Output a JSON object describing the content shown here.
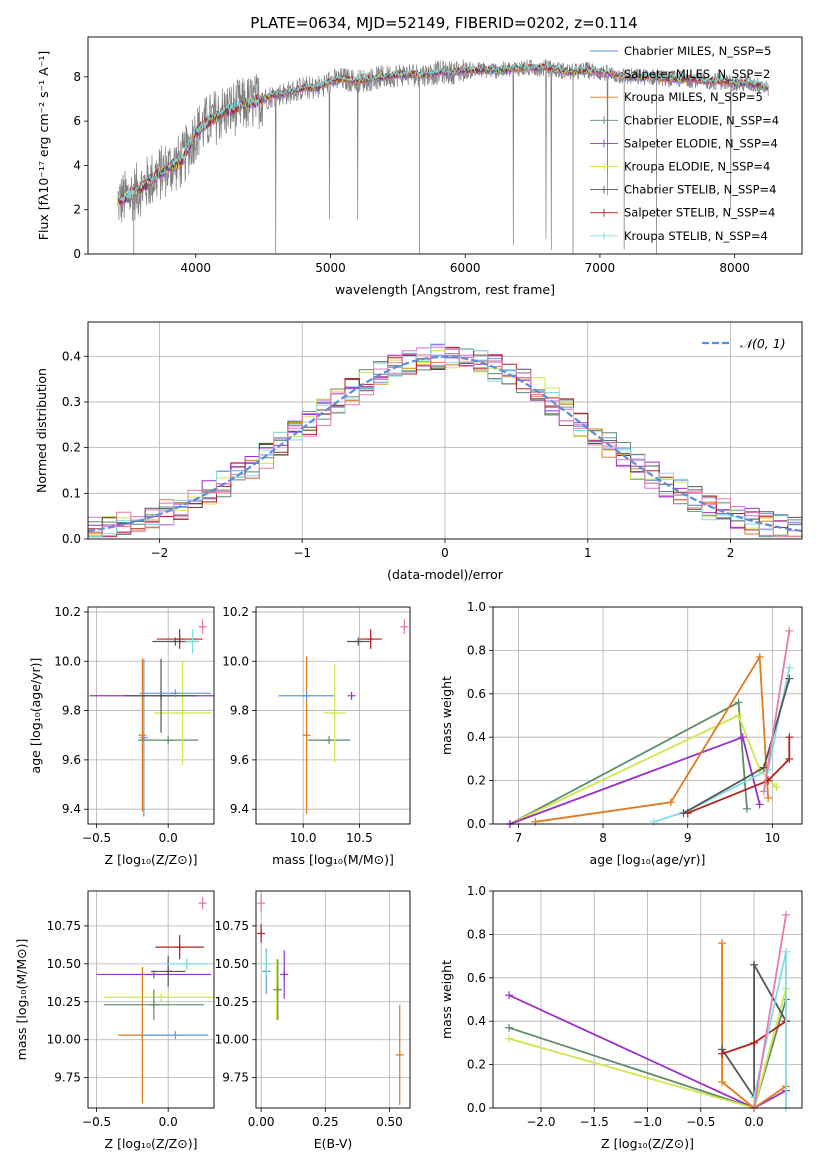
{
  "figure": {
    "title": "PLATE=0634, MJD=52149, FIBERID=0202, z=0.114",
    "colors": {
      "c0": "#6495ED",
      "c1": "#DA70D6",
      "c2": "#E07B1F",
      "c3": "#5F8A6B",
      "c4": "#9B30C8",
      "c5": "#CFE74C",
      "c6": "#555555",
      "c7": "#B22222",
      "c8": "#7FDEE0",
      "c9": "#E87AB0",
      "spectrum": "#7F7F7F",
      "normal": "#5B8DDA"
    }
  },
  "chart_data": [
    {
      "type": "line",
      "title": "PLATE=0634, MJD=52149, FIBERID=0202, z=0.114",
      "xlabel": "wavelength [Angstrom, rest frame]",
      "ylabel": "Flux [fλ10⁻¹⁷ erg cm⁻² s⁻¹ A⁻¹]",
      "xlim": [
        3200,
        8500
      ],
      "ylim": [
        0,
        9.8
      ],
      "xticks": [
        4000,
        5000,
        6000,
        7000,
        8000
      ],
      "yticks": [
        0,
        2,
        4,
        6,
        8
      ],
      "series": [
        {
          "name": "Chabrier MILES, N_SSP=5",
          "color": "#6495ED",
          "marker": "none"
        },
        {
          "name": "Salpeter MILES, N_SSP=2",
          "color": "#DA70D6",
          "marker": "none"
        },
        {
          "name": "Kroupa MILES, N_SSP=5",
          "color": "#E07B1F",
          "marker": "none"
        },
        {
          "name": "Chabrier ELODIE, N_SSP=4",
          "color": "#5F8A6B",
          "marker": "+"
        },
        {
          "name": "Salpeter ELODIE, N_SSP=4",
          "color": "#9B30C8",
          "marker": "+"
        },
        {
          "name": "Kroupa ELODIE, N_SSP=4",
          "color": "#CFE74C",
          "marker": "+"
        },
        {
          "name": "Chabrier STELIB, N_SSP=4",
          "color": "#555555",
          "marker": "+"
        },
        {
          "name": "Salpeter STELIB, N_SSP=4",
          "color": "#B22222",
          "marker": "+"
        },
        {
          "name": "Kroupa STELIB, N_SSP=4",
          "color": "#7FDEE0",
          "marker": "+"
        }
      ],
      "model_curve": {
        "x": [
          3400,
          3500,
          3600,
          3700,
          3800,
          3900,
          4000,
          4100,
          4200,
          4300,
          4400,
          4500,
          4600,
          4700,
          4800,
          4900,
          5000,
          5100,
          5200,
          5300,
          5400,
          5500,
          5600,
          5700,
          5800,
          5900,
          6000,
          6100,
          6200,
          6300,
          6400,
          6500,
          6600,
          6700,
          6800,
          6900,
          7000,
          7100,
          7200,
          7300,
          7400,
          7500,
          7600,
          7700,
          7800,
          7900,
          8000,
          8100,
          8200,
          8250
        ],
        "y": [
          2.3,
          2.6,
          3.0,
          3.5,
          3.9,
          4.2,
          5.5,
          6.0,
          6.4,
          6.6,
          6.8,
          7.0,
          7.2,
          7.3,
          7.5,
          7.5,
          7.8,
          7.9,
          7.8,
          7.9,
          8.0,
          8.1,
          8.1,
          8.1,
          8.2,
          8.2,
          8.3,
          8.3,
          8.3,
          8.3,
          8.4,
          8.4,
          8.4,
          8.3,
          8.2,
          8.3,
          8.2,
          8.1,
          8.0,
          8.0,
          8.0,
          7.9,
          7.9,
          7.9,
          7.8,
          7.8,
          7.7,
          7.7,
          7.6,
          7.5
        ]
      },
      "legend": "right"
    },
    {
      "type": "area",
      "xlabel": "(data-model)/error",
      "ylabel": "Normed distribution",
      "xlim": [
        -2.5,
        2.5
      ],
      "ylim": [
        0,
        0.475
      ],
      "xticks": [
        -2,
        -1,
        0,
        1,
        2
      ],
      "yticks": [
        0.0,
        0.1,
        0.2,
        0.3,
        0.4
      ],
      "series": [
        {
          "name": "𝒩(0, 1)",
          "color": "#5B8DDA",
          "style": "dashed"
        }
      ],
      "histograms": "9 step histograms, bin width 0.1, colors as spectrum models",
      "legend": "top-right"
    },
    {
      "type": "scatter",
      "xlabel": "Z [log₁₀(Z/Z⊙)]",
      "ylabel": "age  [log₁₀(age/yr)]",
      "xlim": [
        -0.56,
        0.32
      ],
      "ylim": [
        9.34,
        10.22
      ],
      "xticks": [
        -0.5,
        0.0
      ],
      "yticks": [
        9.4,
        9.6,
        9.8,
        10.0,
        10.2
      ],
      "points": [
        {
          "color": "#6495ED",
          "x": -0.17,
          "y": 9.69,
          "xerr": 0.0,
          "yerr": 0.32
        },
        {
          "color": "#E07B1F",
          "x": -0.18,
          "y": 9.7,
          "xerr": 0.0,
          "yerr": 0.31
        },
        {
          "color": "#5F8A6B",
          "x": 0.0,
          "y": 9.68,
          "xerr": 0.21,
          "yerr": 0.0
        },
        {
          "color": "#9B30C8",
          "x": -0.05,
          "y": 9.86,
          "xerr": 0.5,
          "yerr": 0.0
        },
        {
          "color": "#CFE74C",
          "x": 0.1,
          "y": 9.79,
          "xerr": 0.2,
          "yerr": 0.21
        },
        {
          "color": "#555555",
          "x": -0.05,
          "y": 9.86,
          "xerr": 0.25,
          "yerr": 0.15
        },
        {
          "color": "#6495ED",
          "x": 0.05,
          "y": 9.87,
          "xerr": 0.25,
          "yerr": 0.0
        },
        {
          "color": "#555555",
          "x": 0.05,
          "y": 10.08,
          "xerr": 0.16,
          "yerr": 0.0
        },
        {
          "color": "#B22222",
          "x": 0.08,
          "y": 10.09,
          "xerr": 0.16,
          "yerr": 0.04
        },
        {
          "color": "#7FDEE0",
          "x": 0.17,
          "y": 10.08,
          "xerr": 0.05,
          "yerr": 0.05
        },
        {
          "color": "#E87AB0",
          "x": 0.24,
          "y": 10.14,
          "xerr": 0.02,
          "yerr": 0.03
        }
      ]
    },
    {
      "type": "scatter",
      "xlabel": "mass [log₁₀(M/M⊙)]",
      "xlim": [
        9.58,
        10.95
      ],
      "ylim": [
        9.34,
        10.22
      ],
      "xticks": [
        10.0,
        10.5
      ],
      "yticks": [
        9.4,
        9.6,
        9.8,
        10.0,
        10.2
      ],
      "points": [
        {
          "color": "#E07B1F",
          "x": 10.03,
          "y": 9.7,
          "xerr": 0.0,
          "yerr": 0.32
        },
        {
          "color": "#9B30C8",
          "x": 10.43,
          "y": 9.86,
          "xerr": 0.0,
          "yerr": 0.0
        },
        {
          "color": "#6495ED",
          "x": 10.03,
          "y": 9.86,
          "xerr": 0.25,
          "yerr": 0.0
        },
        {
          "color": "#5F8A6B",
          "x": 10.23,
          "y": 9.68,
          "xerr": 0.19,
          "yerr": 0.0
        },
        {
          "color": "#CFE74C",
          "x": 10.28,
          "y": 9.79,
          "xerr": 0.1,
          "yerr": 0.2
        },
        {
          "color": "#7FDEE0",
          "x": 10.5,
          "y": 10.08,
          "xerr": 0.0,
          "yerr": 0.04
        },
        {
          "color": "#555555",
          "x": 10.49,
          "y": 10.08,
          "xerr": 0.1,
          "yerr": 0.0
        },
        {
          "color": "#B22222",
          "x": 10.6,
          "y": 10.09,
          "xerr": 0.1,
          "yerr": 0.04
        },
        {
          "color": "#E87AB0",
          "x": 10.9,
          "y": 10.14,
          "xerr": 0.02,
          "yerr": 0.03
        }
      ]
    },
    {
      "type": "line",
      "xlabel": "age  [log₁₀(age/yr)]",
      "ylabel": "mass weight",
      "xlim": [
        6.7,
        10.35
      ],
      "ylim": [
        0,
        1.0
      ],
      "xticks": [
        7,
        8,
        9,
        10
      ],
      "yticks": [
        0.0,
        0.2,
        0.4,
        0.6,
        0.8,
        1.0
      ],
      "series": [
        {
          "color": "#5F8A6B",
          "x": [
            6.9,
            9.6,
            9.7
          ],
          "y": [
            0.0,
            0.56,
            0.07
          ]
        },
        {
          "color": "#CFE74C",
          "x": [
            6.9,
            9.6,
            9.85,
            10.05
          ],
          "y": [
            0.0,
            0.5,
            0.25,
            0.17
          ]
        },
        {
          "color": "#9B30C8",
          "x": [
            6.9,
            9.65,
            9.85
          ],
          "y": [
            0.0,
            0.4,
            0.09
          ]
        },
        {
          "color": "#E07B1F",
          "x": [
            7.2,
            8.8,
            9.85,
            9.95
          ],
          "y": [
            0.01,
            0.1,
            0.77,
            0.12
          ]
        },
        {
          "color": "#7FDEE0",
          "x": [
            8.6,
            9.0,
            9.95,
            10.2
          ],
          "y": [
            0.01,
            0.06,
            0.25,
            0.72
          ]
        },
        {
          "color": "#555555",
          "x": [
            8.95,
            9.9,
            10.2
          ],
          "y": [
            0.05,
            0.26,
            0.67
          ]
        },
        {
          "color": "#B22222",
          "x": [
            9.0,
            9.95,
            10.2,
            10.2
          ],
          "y": [
            0.05,
            0.2,
            0.3,
            0.4
          ]
        },
        {
          "color": "#E87AB0",
          "x": [
            9.9,
            10.2
          ],
          "y": [
            0.15,
            0.89
          ]
        }
      ]
    },
    {
      "type": "scatter",
      "xlabel": "Z [log₁₀(Z/Z⊙)]",
      "ylabel": "mass [log₁₀(M/M⊙)]",
      "xlim": [
        -0.56,
        0.32
      ],
      "ylim": [
        9.55,
        10.98
      ],
      "xticks": [
        -0.5,
        0.0
      ],
      "yticks": [
        9.75,
        10.0,
        10.25,
        10.5,
        10.75
      ],
      "points": [
        {
          "color": "#E07B1F",
          "x": -0.18,
          "y": 10.03,
          "xerr": 0.17,
          "yerr": 0.45
        },
        {
          "color": "#6495ED",
          "x": 0.05,
          "y": 10.03,
          "xerr": 0.23,
          "yerr": 0.0
        },
        {
          "color": "#CFE74C",
          "x": -0.05,
          "y": 10.28,
          "xerr": 0.4,
          "yerr": 0.0
        },
        {
          "color": "#5F8A6B",
          "x": -0.1,
          "y": 10.23,
          "xerr": 0.35,
          "yerr": 0.1
        },
        {
          "color": "#9B30C8",
          "x": -0.1,
          "y": 10.43,
          "xerr": 0.4,
          "yerr": 0.0
        },
        {
          "color": "#555555",
          "x": 0.0,
          "y": 10.45,
          "xerr": 0.12,
          "yerr": 0.1
        },
        {
          "color": "#B22222",
          "x": 0.08,
          "y": 10.61,
          "xerr": 0.17,
          "yerr": 0.08
        },
        {
          "color": "#7FDEE0",
          "x": 0.13,
          "y": 10.5,
          "xerr": 0.15,
          "yerr": 0.04
        },
        {
          "color": "#E87AB0",
          "x": 0.24,
          "y": 10.9,
          "xerr": 0.02,
          "yerr": 0.04
        }
      ]
    },
    {
      "type": "scatter",
      "xlabel": "E(B-V)",
      "xlim": [
        -0.02,
        0.58
      ],
      "ylim": [
        9.55,
        10.98
      ],
      "xticks": [
        0.0,
        0.25,
        0.5
      ],
      "yticks": [
        9.75,
        10.0,
        10.25,
        10.5,
        10.75
      ],
      "points": [
        {
          "color": "#E87AB0",
          "x": 0.0,
          "y": 10.9,
          "xerr": 0.0,
          "yerr": 0.06
        },
        {
          "color": "#B22222",
          "x": 0.0,
          "y": 10.7,
          "xerr": 0.0,
          "yerr": 0.06
        },
        {
          "color": "#6495ED",
          "x": 0.02,
          "y": 10.45,
          "xerr": 0.0,
          "yerr": 0.15
        },
        {
          "color": "#7FDEE0",
          "x": 0.02,
          "y": 10.5,
          "xerr": 0.0,
          "yerr": 0.08
        },
        {
          "color": "#CFE74C",
          "x": 0.06,
          "y": 10.33,
          "xerr": 0.0,
          "yerr": 0.2
        },
        {
          "color": "#5F8A6B",
          "x": 0.065,
          "y": 10.33,
          "xerr": 0.0,
          "yerr": 0.2
        },
        {
          "color": "#9B30C8",
          "x": 0.09,
          "y": 10.43,
          "xerr": 0.0,
          "yerr": 0.16
        },
        {
          "color": "#E07B1F",
          "x": 0.54,
          "y": 9.9,
          "xerr": 0.0,
          "yerr": 0.33
        }
      ]
    },
    {
      "type": "line",
      "xlabel": "Z [log₁₀(Z/Z⊙)]",
      "ylabel": "mass weight",
      "xlim": [
        -2.45,
        0.45
      ],
      "ylim": [
        0,
        1.0
      ],
      "xticks": [
        -2.0,
        -1.5,
        -1.0,
        -0.5,
        0.0
      ],
      "yticks": [
        0.0,
        0.2,
        0.4,
        0.6,
        0.8,
        1.0
      ],
      "series": [
        {
          "color": "#9B30C8",
          "x": [
            -2.3,
            0.0,
            0.3
          ],
          "y": [
            0.52,
            0.0,
            0.08
          ]
        },
        {
          "color": "#5F8A6B",
          "x": [
            -2.3,
            0.0,
            0.3
          ],
          "y": [
            0.37,
            0.0,
            0.5
          ]
        },
        {
          "color": "#CFE74C",
          "x": [
            -2.3,
            0.0,
            0.3
          ],
          "y": [
            0.32,
            0.0,
            0.55
          ]
        },
        {
          "color": "#E07B1F",
          "x": [
            -0.3,
            -0.3,
            0.0,
            0.3
          ],
          "y": [
            0.76,
            0.12,
            0.0,
            0.1
          ]
        },
        {
          "color": "#555555",
          "x": [
            -0.3,
            0.0,
            0.0,
            0.3
          ],
          "y": [
            0.27,
            0.05,
            0.66,
            0.4
          ]
        },
        {
          "color": "#B22222",
          "x": [
            -0.3,
            0.0,
            0.3
          ],
          "y": [
            0.25,
            0.3,
            0.4
          ]
        },
        {
          "color": "#7FDEE0",
          "x": [
            0.0,
            0.3,
            0.3
          ],
          "y": [
            0.05,
            0.72,
            0.0
          ]
        },
        {
          "color": "#E87AB0",
          "x": [
            0.0,
            0.3
          ],
          "y": [
            0.0,
            0.89
          ]
        }
      ]
    }
  ]
}
